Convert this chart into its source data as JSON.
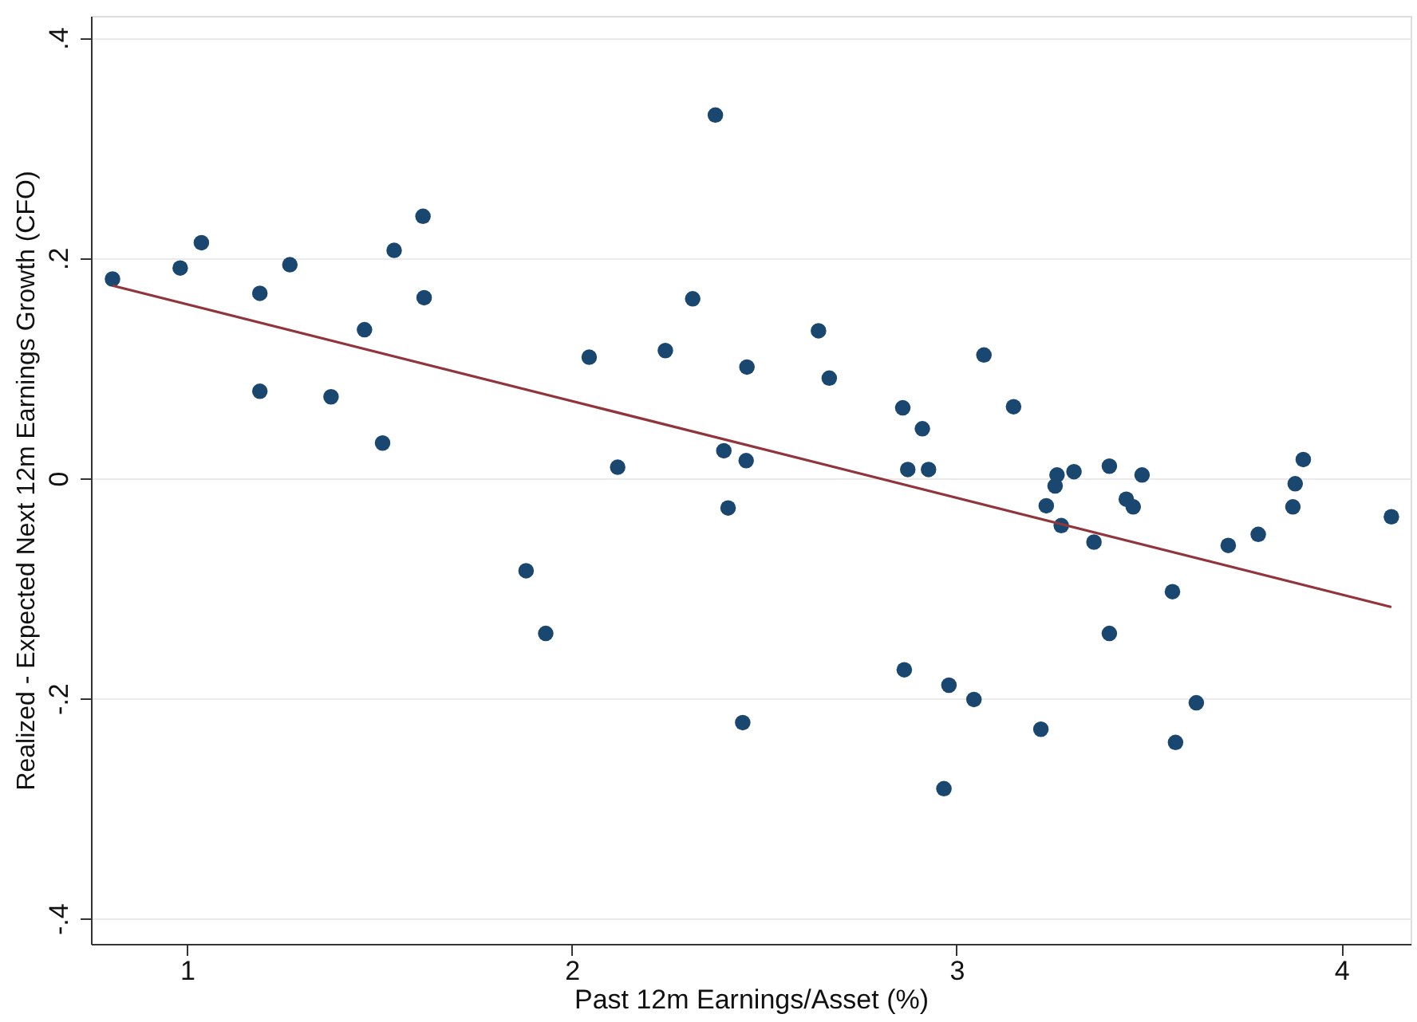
{
  "chart_data": {
    "type": "scatter",
    "xlabel": "Past 12m Earnings/Asset (%)",
    "ylabel": "Realized - Expected Next 12m Earnings Growth (CFO)",
    "xlim": [
      0.75,
      4.18
    ],
    "ylim": [
      -0.423,
      0.42
    ],
    "xticks": [
      1,
      2,
      3,
      4
    ],
    "yticks": [
      {
        "value": -0.4,
        "label": "-.4"
      },
      {
        "value": -0.2,
        "label": "-.2"
      },
      {
        "value": 0,
        "label": "0"
      },
      {
        "value": 0.2,
        "label": ".2"
      },
      {
        "value": 0.4,
        "label": ".4"
      }
    ],
    "grid": "y",
    "series": [
      {
        "color": "#1a476f",
        "marker": "circle",
        "x": [
          0.806,
          0.982,
          1.037,
          1.189,
          1.267,
          1.189,
          1.374,
          1.461,
          1.508,
          1.538,
          1.613,
          1.616,
          1.881,
          1.932,
          2.045,
          2.119,
          2.243,
          2.314,
          2.373,
          2.395,
          2.406,
          2.455,
          2.453,
          2.444,
          2.641,
          2.669,
          2.86,
          2.911,
          2.873,
          2.927,
          3.071,
          3.148,
          3.261,
          3.256,
          3.305,
          3.233,
          3.272,
          3.357,
          3.397,
          3.441,
          3.459,
          3.482,
          3.706,
          3.784,
          3.874,
          3.88,
          3.901,
          4.13,
          2.864,
          2.98,
          3.045,
          2.967,
          3.219,
          3.561,
          3.397,
          3.569,
          3.623
        ],
        "values": [
          0.181,
          0.191,
          0.214,
          0.168,
          0.194,
          0.079,
          0.074,
          0.135,
          0.032,
          0.207,
          0.238,
          0.164,
          -0.084,
          -0.141,
          0.11,
          0.01,
          0.116,
          0.163,
          0.33,
          0.025,
          -0.027,
          0.101,
          0.016,
          -0.222,
          0.134,
          0.091,
          0.064,
          0.045,
          0.008,
          0.008,
          0.112,
          0.065,
          0.003,
          -0.007,
          0.006,
          -0.025,
          -0.043,
          -0.058,
          0.011,
          -0.019,
          -0.026,
          0.003,
          -0.061,
          -0.051,
          -0.026,
          -0.005,
          0.017,
          -0.035,
          -0.174,
          -0.188,
          -0.201,
          -0.282,
          -0.228,
          -0.103,
          -0.141,
          -0.24,
          -0.204
        ]
      },
      {
        "type": "line",
        "color": "#90353b",
        "line_style": "solid",
        "x": [
          0.806,
          4.13
        ],
        "values": [
          0.175,
          -0.117
        ]
      }
    ]
  }
}
